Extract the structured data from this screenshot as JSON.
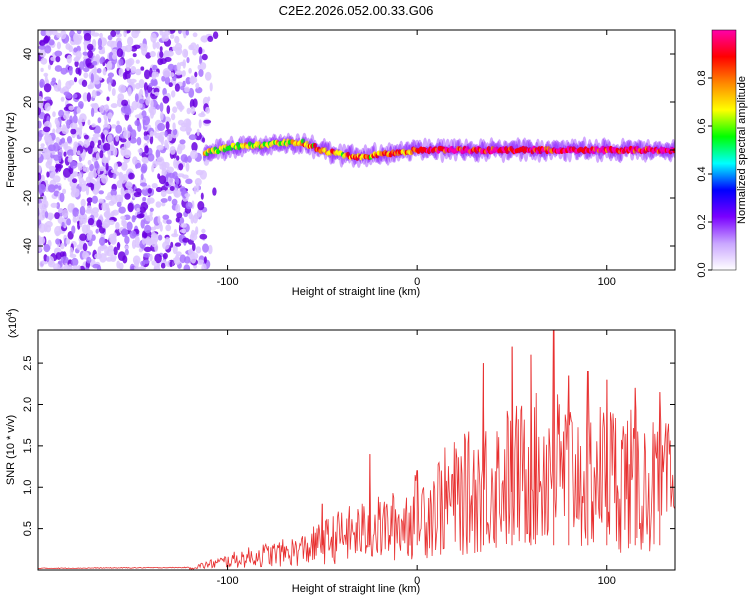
{
  "figure": {
    "title": "C2E2.2026.052.00.33.G06"
  },
  "chart_data": [
    {
      "type": "heatmap",
      "name": "spectrogram",
      "xlabel": "Height of straight line (km)",
      "ylabel": "Frequency (Hz)",
      "xlim": [
        -200,
        136
      ],
      "ylim": [
        -50,
        50
      ],
      "xticks": [
        -100,
        0,
        100
      ],
      "yticks": [
        -40,
        -20,
        0,
        20,
        40
      ],
      "colorbar": {
        "label": "Normalized spectral amplitude",
        "range": [
          0,
          1
        ],
        "ticks": [
          "0.0",
          "0.2",
          "0.4",
          "0.6",
          "0.8"
        ],
        "colors": [
          "#ffffff",
          "#c9a6ff",
          "#7a00ff",
          "#0000ff",
          "#00ffff",
          "#00ff00",
          "#ffff00",
          "#ff8800",
          "#ff0000",
          "#ff00aa"
        ]
      },
      "ridge_frequency_hz": {
        "x": [
          -110,
          -100,
          -90,
          -80,
          -70,
          -60,
          -50,
          -40,
          -30,
          -20,
          -10,
          0,
          10,
          20,
          40,
          60,
          80,
          100,
          120,
          136
        ],
        "y": [
          -1,
          1,
          2,
          2,
          3,
          3,
          0,
          -2,
          -3,
          -2,
          -1,
          0,
          0,
          0,
          0,
          0,
          0,
          0,
          0,
          0
        ]
      }
    },
    {
      "type": "line",
      "name": "snr",
      "xlabel": "Height of straight line (km)",
      "ylabel": "SNR (10 * v/v)",
      "scale_label": "(x10",
      "scale_exponent": "4",
      "xlim": [
        -200,
        136
      ],
      "ylim": [
        0,
        2.9
      ],
      "xticks": [
        -100,
        0,
        100
      ],
      "yticks": [
        0.5,
        1.0,
        1.5,
        2.0,
        2.5
      ],
      "ytick_labels": [
        "0.5",
        "1.0",
        "1.5",
        "2.0",
        "2.5"
      ],
      "series": [
        {
          "name": "SNR",
          "color": "#e83030",
          "x": [
            -200,
            -120,
            -110,
            -100,
            -90,
            -80,
            -70,
            -60,
            -50,
            -40,
            -30,
            -20,
            -10,
            0,
            10,
            20,
            30,
            40,
            50,
            60,
            70,
            80,
            90,
            100,
            110,
            120,
            130,
            136
          ],
          "y": [
            0.02,
            0.03,
            0.08,
            0.13,
            0.18,
            0.22,
            0.25,
            0.3,
            0.4,
            0.5,
            0.55,
            0.6,
            0.65,
            0.8,
            0.95,
            1.05,
            1.15,
            1.3,
            1.35,
            1.4,
            1.5,
            1.45,
            1.35,
            1.4,
            1.35,
            1.25,
            1.2,
            1.2
          ]
        }
      ],
      "peaks": {
        "x": [
          -50,
          -25,
          0,
          35,
          50,
          60,
          72,
          80,
          90,
          100,
          115,
          128
        ],
        "y": [
          0.8,
          1.4,
          1.2,
          2.5,
          2.7,
          2.6,
          2.9,
          2.35,
          2.4,
          2.3,
          2.2,
          2.15
        ]
      }
    }
  ]
}
